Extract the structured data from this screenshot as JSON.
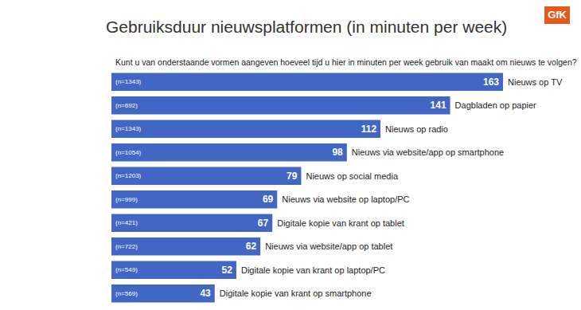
{
  "chart_data": {
    "type": "bar",
    "orientation": "horizontal",
    "title": "Gebruiksduur nieuwsplatformen (in minuten per week)",
    "subtitle": "Kunt u van onderstaande vormen aangeven hoeveel tijd u hier in minuten per week gebruik van maakt om nieuws te volgen?",
    "logo": "GfK",
    "categories": [
      "Nieuws op TV",
      "Dagbladen op papier",
      "Nieuws op radio",
      "Nieuws via website/app op smartphone",
      "Nieuws op social media",
      "Nieuws via website op laptop/PC",
      "Digitale kopie van krant op tablet",
      "Nieuws via website/app op tablet",
      "Digitale kopie van krant op laptop/PC",
      "Digitale kopie van krant op smartphone"
    ],
    "values": [
      163,
      141,
      112,
      98,
      79,
      69,
      67,
      62,
      52,
      43
    ],
    "n_labels": [
      "(n=1343)",
      "(n=692)",
      "(n=1343)",
      "(n=1054)",
      "(n=1203)",
      "(n=999)",
      "(n=421)",
      "(n=722)",
      "(n=549)",
      "(n=569)"
    ],
    "color": "#4266c4",
    "data_labels": true,
    "tick_labels": false,
    "grid": false
  }
}
